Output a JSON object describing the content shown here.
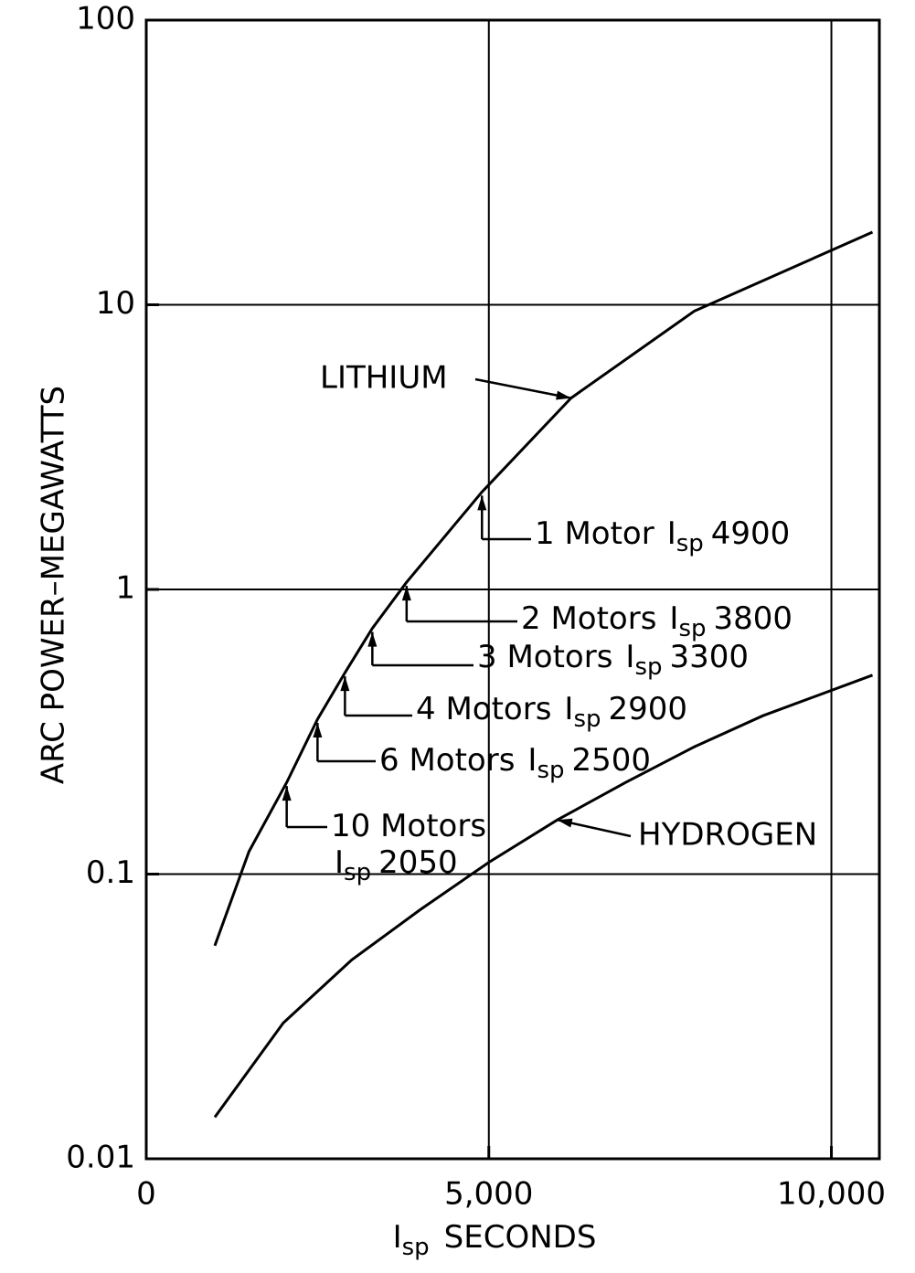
{
  "chart_data": {
    "type": "line",
    "xlabel": {
      "main": "I",
      "sub": "sp",
      "post": "SECONDS"
    },
    "ylabel": "ARC POWER–MEGAWATTS",
    "xlim": [
      0,
      10700
    ],
    "ylim": [
      0.01,
      100
    ],
    "log_y": true,
    "grid": true,
    "xticks": [
      0,
      {
        "value": 5000,
        "label": "5,000"
      },
      {
        "value": 10000,
        "label": "10,000"
      }
    ],
    "yticks": [
      0.01,
      0.1,
      1,
      10,
      100
    ],
    "series": [
      {
        "name": "LITHIUM",
        "color": "#000000",
        "x": [
          1000,
          1500,
          2050,
          2500,
          2900,
          3300,
          3800,
          4900,
          6200,
          8000,
          10600
        ],
        "values": [
          0.056,
          0.12,
          0.21,
          0.35,
          0.51,
          0.73,
          1.06,
          2.2,
          4.7,
          9.5,
          18
        ]
      },
      {
        "name": "HYDROGEN",
        "color": "#000000",
        "x": [
          1000,
          2000,
          3000,
          4000,
          5000,
          6000,
          7000,
          8000,
          9000,
          10600
        ],
        "values": [
          0.014,
          0.03,
          0.05,
          0.075,
          0.11,
          0.155,
          0.21,
          0.28,
          0.36,
          0.5
        ]
      }
    ],
    "annotations": [
      {
        "pre": "1 Motor",
        "main": "I",
        "sub": "sp",
        "post": "4900"
      },
      {
        "pre": "2 Motors",
        "main": "I",
        "sub": "sp",
        "post": "3800"
      },
      {
        "pre": "3 Motors",
        "main": "I",
        "sub": "sp",
        "post": "3300"
      },
      {
        "pre": "4 Motors",
        "main": "I",
        "sub": "sp",
        "post": "2900"
      },
      {
        "pre": "6 Motors",
        "main": "I",
        "sub": "sp",
        "post": "2500"
      },
      {
        "pre": "10 Motors",
        "main": "I",
        "sub": "sp",
        "post": "2050"
      }
    ]
  }
}
